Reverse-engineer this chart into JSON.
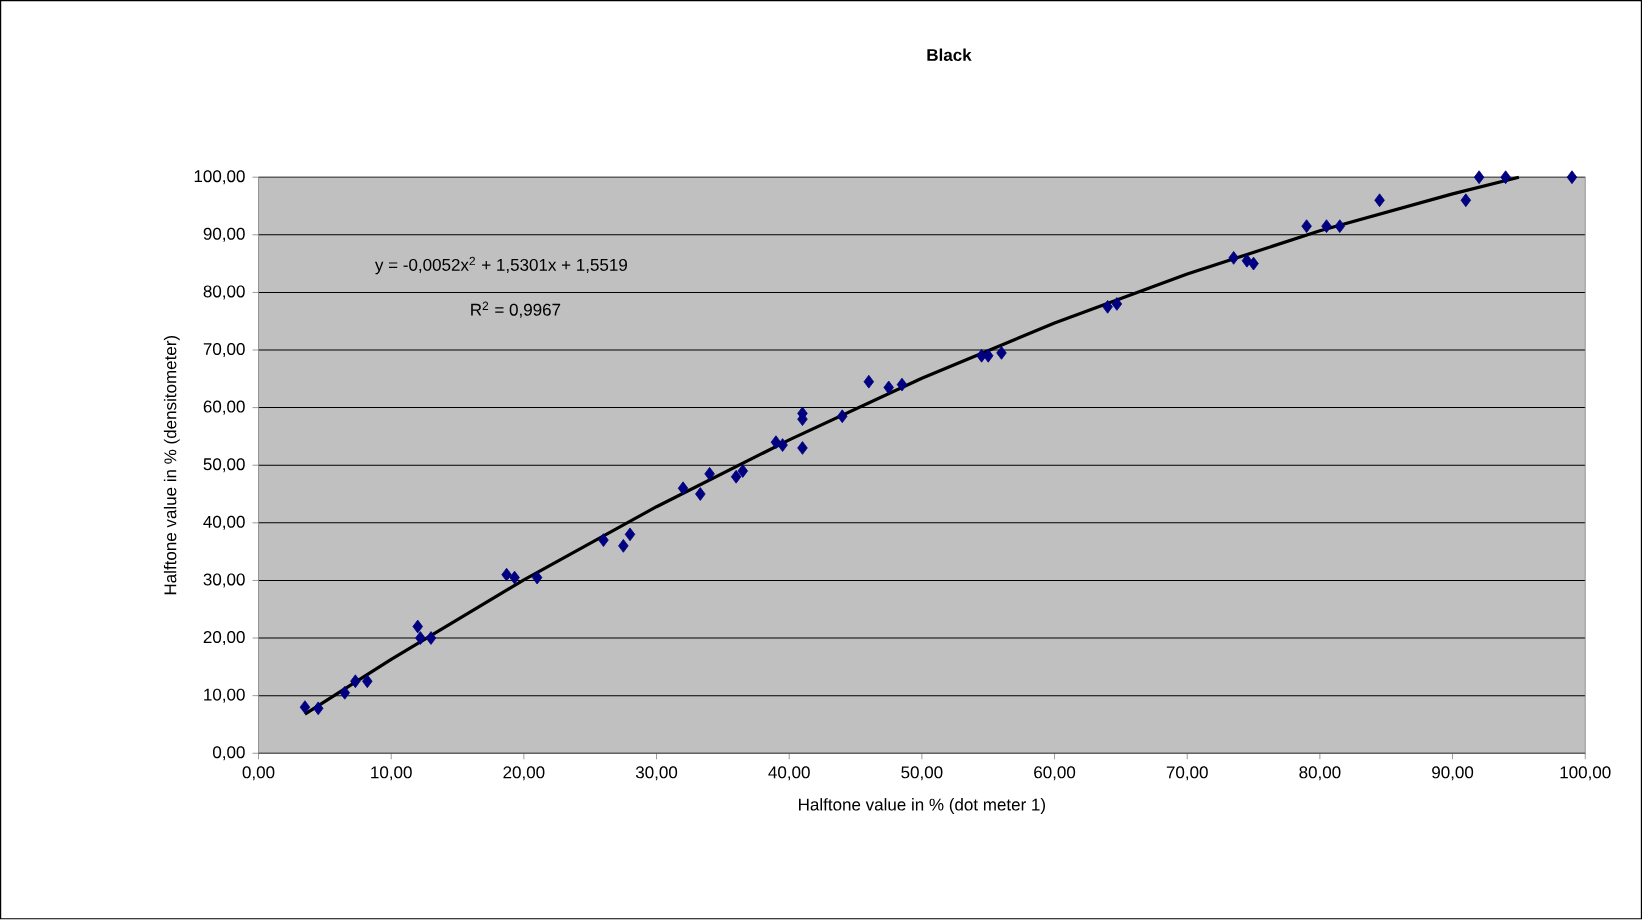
{
  "chart_data": {
    "type": "scatter",
    "title": "Black",
    "xlabel": "Halftone value in % (dot meter 1)",
    "ylabel": "Halftone value in % (densitometer)",
    "annotations": [
      "y = -0,0052x$^{2}$ + 1,5301x + 1,5519",
      "R$^{2}$ = 0,9967"
    ],
    "xlim": [
      0,
      100
    ],
    "ylim": [
      0,
      100
    ],
    "xticks": [
      {
        "value": 0,
        "label": "0,00"
      },
      {
        "value": 10,
        "label": "10,00"
      },
      {
        "value": 20,
        "label": "20,00"
      },
      {
        "value": 30,
        "label": "30,00"
      },
      {
        "value": 40,
        "label": "40,00"
      },
      {
        "value": 50,
        "label": "50,00"
      },
      {
        "value": 60,
        "label": "60,00"
      },
      {
        "value": 70,
        "label": "70,00"
      },
      {
        "value": 80,
        "label": "80,00"
      },
      {
        "value": 90,
        "label": "90,00"
      },
      {
        "value": 100,
        "label": "100,00"
      }
    ],
    "yticks": [
      {
        "value": 0,
        "label": "0,00"
      },
      {
        "value": 10,
        "label": "10,00"
      },
      {
        "value": 20,
        "label": "20,00"
      },
      {
        "value": 30,
        "label": "30,00"
      },
      {
        "value": 40,
        "label": "40,00"
      },
      {
        "value": 50,
        "label": "50,00"
      },
      {
        "value": 60,
        "label": "60,00"
      },
      {
        "value": 70,
        "label": "70,00"
      },
      {
        "value": 80,
        "label": "80,00"
      },
      {
        "value": 90,
        "label": "90,00"
      },
      {
        "value": 100,
        "label": "100,00"
      }
    ],
    "grid": "y",
    "marker": "diamond",
    "series": [
      {
        "color": "#000080",
        "x": [
          3.5,
          4.5,
          6.5,
          7.3,
          8.2,
          12,
          12.2,
          13,
          18.7,
          19.3,
          21,
          26,
          27.5,
          28,
          32,
          33.3,
          34,
          36,
          36.5,
          39,
          39.5,
          41,
          41,
          41,
          44,
          46,
          47.5,
          48.5,
          54.5,
          55,
          56,
          64,
          64.7,
          73.5,
          74.5,
          75,
          79,
          80.5,
          81.5,
          84.5,
          91,
          92,
          94,
          99
        ],
        "values": [
          8,
          7.8,
          10.5,
          12.5,
          12.5,
          22,
          20,
          20,
          31,
          30.5,
          30.5,
          37,
          36,
          38,
          46,
          45,
          48.5,
          48,
          49,
          54,
          53.5,
          59,
          58,
          53,
          58.5,
          64.5,
          63.5,
          64,
          69,
          69,
          69.5,
          77.5,
          78,
          86,
          85.5,
          85,
          91.5,
          91.5,
          91.5,
          96,
          96,
          100,
          100,
          100
        ]
      },
      {
        "type": "line",
        "color": "#000000",
        "marker": "none",
        "x": [
          3.5,
          10,
          20,
          30,
          40,
          50,
          60,
          70,
          80,
          90,
          95
        ],
        "values": [
          6.8,
          16.3,
          30.1,
          42.8,
          54.4,
          65.1,
          74.7,
          83.2,
          90.7,
          97.1,
          100
        ]
      }
    ]
  }
}
